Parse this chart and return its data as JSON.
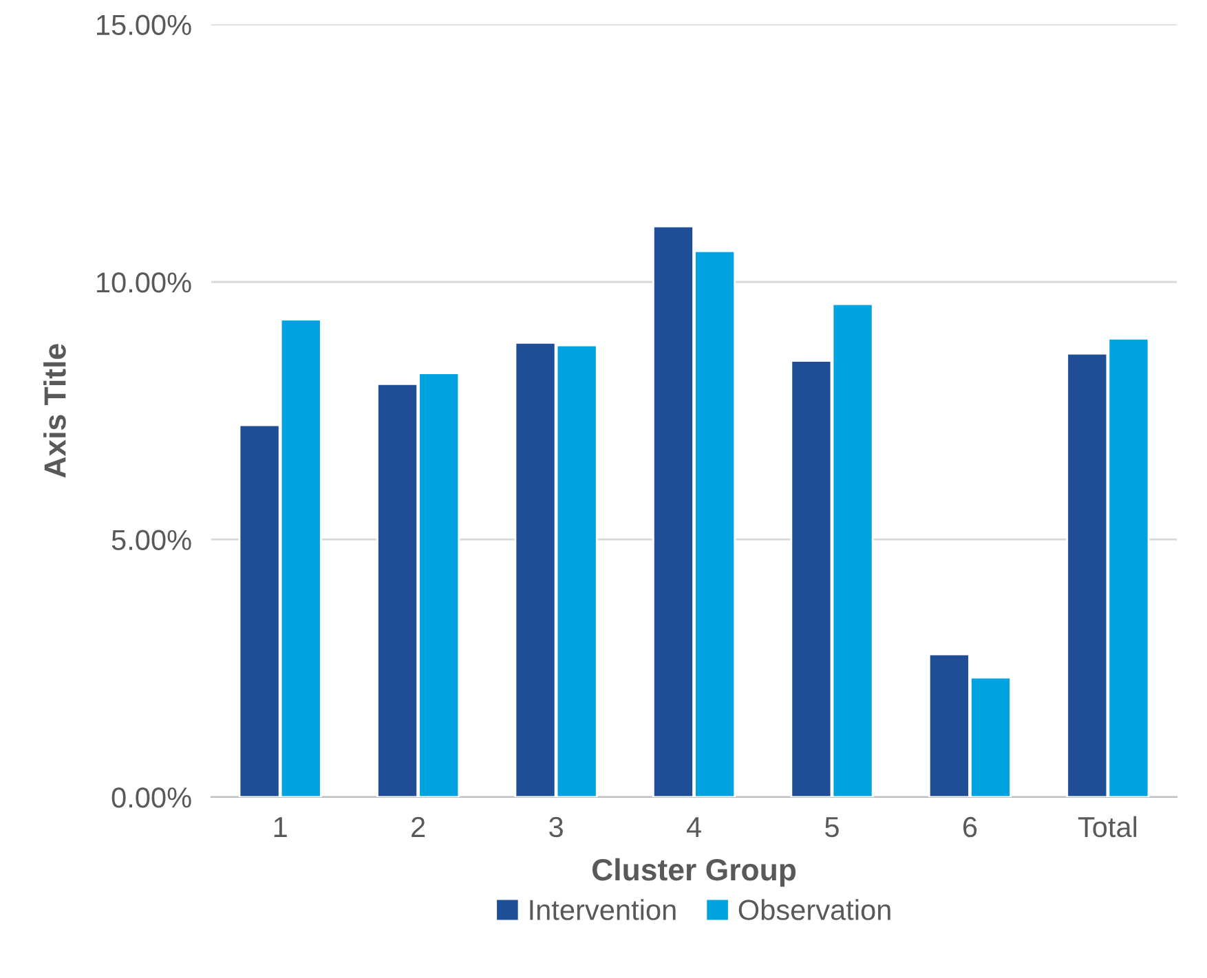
{
  "chart_data": {
    "type": "bar",
    "xlabel": "Cluster Group",
    "ylabel": "Axis Title",
    "categories": [
      "1",
      "2",
      "3",
      "4",
      "5",
      "6",
      "Total"
    ],
    "series": [
      {
        "name": "Intervention",
        "color": "#1f4e96",
        "values": [
          7.22,
          8.02,
          8.82,
          11.08,
          8.47,
          2.77,
          8.61
        ]
      },
      {
        "name": "Observation",
        "color": "#00a2e0",
        "values": [
          9.27,
          8.23,
          8.77,
          10.6,
          9.57,
          2.32,
          8.9
        ]
      }
    ],
    "ylim": [
      0,
      15
    ],
    "yticks": [
      {
        "value": 0,
        "label": "0.00%"
      },
      {
        "value": 5,
        "label": "5.00%"
      },
      {
        "value": 10,
        "label": "10.00%"
      },
      {
        "value": 15,
        "label": "15.00%"
      }
    ],
    "grid": "y",
    "legend": "bottom"
  }
}
